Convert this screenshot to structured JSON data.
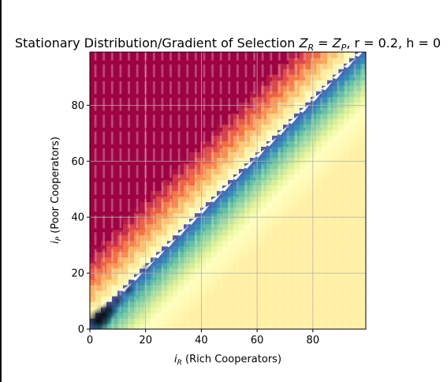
{
  "chart_data": {
    "type": "heatmap",
    "title": "Stationary Distribution/Gradient of Selection Z_R = Z_P, r = 0.2, h = 0",
    "title_parts": {
      "prefix": "Stationary Distribution/Gradient of Selection ",
      "z_symbol": "Z",
      "sub_r": "R",
      "equals": " = ",
      "sub_p": "P",
      "r_part": ", r = 0.2, h = 0"
    },
    "xlabel": "i_R (Rich Cooperators)",
    "xlabel_parts": {
      "symbol": "i",
      "sub": "R",
      "rest": " (Rich Cooperators)"
    },
    "ylabel": "i_P (Poor Cooperators)",
    "ylabel_parts": {
      "symbol": "i",
      "sub": "P",
      "rest": " (Poor Cooperators)"
    },
    "xlim": [
      0,
      99
    ],
    "ylim": [
      0,
      99
    ],
    "x_ticks": [
      0,
      20,
      40,
      60,
      80
    ],
    "y_ticks": [
      0,
      20,
      40,
      60,
      80
    ],
    "x_tick_labels": [
      "0",
      "20",
      "40",
      "60",
      "80"
    ],
    "y_tick_labels": [
      "0",
      "20",
      "40",
      "60",
      "80"
    ],
    "grid": true,
    "colormap": "Spectral",
    "colormap_stops": [
      "#9e0142",
      "#d53e4f",
      "#f46d43",
      "#fdae61",
      "#fee08b",
      "#ffffbf",
      "#e6f598",
      "#abdda4",
      "#66c2a5",
      "#3288bd",
      "#5e4fa2"
    ],
    "stationary_mass": [
      {
        "x": 3,
        "y": 3,
        "value": 1.0
      },
      {
        "x": 5,
        "y": 5,
        "value": 0.8
      },
      {
        "x": 7,
        "y": 7,
        "value": 0.55
      },
      {
        "x": 10,
        "y": 10,
        "value": 0.3
      },
      {
        "x": 14,
        "y": 14,
        "value": 0.15
      },
      {
        "x": 20,
        "y": 22,
        "value": 0.06
      }
    ]
  }
}
